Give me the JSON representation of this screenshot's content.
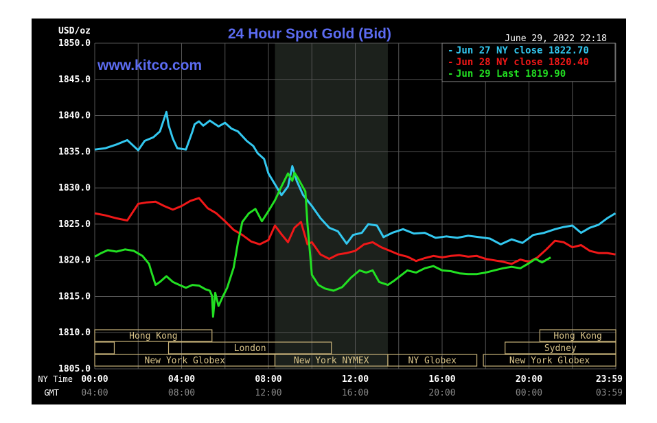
{
  "chart_data": {
    "type": "line",
    "title": "24 Hour Spot Gold (Bid)",
    "source_label": "www.kitco.com",
    "timestamp": "June 29, 2022 22:18",
    "ylabel": "USD/oz",
    "ylim": [
      1805,
      1850
    ],
    "y_ticks": [
      "1850.0",
      "1845.0",
      "1840.0",
      "1835.0",
      "1830.0",
      "1825.0",
      "1820.0",
      "1815.0",
      "1810.0",
      "1805.0"
    ],
    "x_row_label_ny": "NY Time",
    "x_row_label_gmt": "GMT",
    "x_ticks_ny": [
      "00:00",
      "04:00",
      "08:00",
      "12:00",
      "16:00",
      "20:00",
      "23:59"
    ],
    "x_ticks_gmt": [
      "04:00",
      "08:00",
      "12:00",
      "16:00",
      "20:00",
      "00:00",
      "03:59"
    ],
    "x_tick_hours": [
      0,
      4,
      8,
      12,
      16,
      20,
      23.98
    ],
    "xlim": [
      0,
      24
    ],
    "grid": true,
    "legend_position": "top-right",
    "nymex_session_hours": [
      8.3,
      13.5
    ],
    "sessions": [
      {
        "label": "Hong Kong",
        "start": 0,
        "end": 5.4,
        "row": 0
      },
      {
        "label": "Hong Kong",
        "start": 20.5,
        "end": 24,
        "row": 0
      },
      {
        "label": "",
        "start": 0,
        "end": 0.9,
        "row": 1
      },
      {
        "label": "London",
        "start": 3.4,
        "end": 10.9,
        "row": 1
      },
      {
        "label": "Sydney",
        "start": 18.9,
        "end": 24,
        "row": 1
      },
      {
        "label": "New York Globex",
        "start": 0,
        "end": 8.3,
        "row": 2
      },
      {
        "label": "New York NYMEX",
        "start": 8.3,
        "end": 13.5,
        "row": 2
      },
      {
        "label": "NY Globex",
        "start": 13.5,
        "end": 17.6,
        "row": 2
      },
      {
        "label": "New York Globex",
        "start": 17.9,
        "end": 24,
        "row": 2
      }
    ],
    "series": [
      {
        "name": "Jun 27 NY close 1822.70",
        "color": "#33c8f0",
        "x": [
          0,
          0.5,
          1,
          1.5,
          2,
          2.3,
          2.7,
          3,
          3.3,
          3.4,
          3.6,
          3.8,
          4.2,
          4.5,
          4.6,
          4.8,
          5,
          5.3,
          5.7,
          6,
          6.3,
          6.6,
          7,
          7.3,
          7.5,
          7.8,
          8,
          8.3,
          8.6,
          8.9,
          9.1,
          9.3,
          9.6,
          10,
          10.4,
          10.8,
          11.2,
          11.6,
          11.9,
          12.3,
          12.6,
          13,
          13.3,
          13.7,
          14.2,
          14.7,
          15.2,
          15.7,
          16.2,
          16.7,
          17.2,
          17.7,
          18.2,
          18.7,
          19.2,
          19.7,
          20.2,
          20.7,
          21.2,
          21.6,
          22,
          22.4,
          22.8,
          23.2,
          23.6,
          23.98
        ],
        "y": [
          1835.3,
          1835.5,
          1836,
          1836.6,
          1835.2,
          1836.5,
          1837,
          1837.8,
          1840.5,
          1838.7,
          1836.8,
          1835.5,
          1835.3,
          1837.8,
          1838.8,
          1839.2,
          1838.6,
          1839.3,
          1838.5,
          1839,
          1838.2,
          1837.8,
          1836.5,
          1835.8,
          1834.8,
          1834,
          1832,
          1830.5,
          1829,
          1830.2,
          1833,
          1831,
          1829,
          1827.5,
          1825.8,
          1824.5,
          1824,
          1822.3,
          1823.5,
          1823.8,
          1825,
          1824.8,
          1823.2,
          1823.8,
          1824.3,
          1823.7,
          1823.8,
          1823.1,
          1823.3,
          1823.1,
          1823.4,
          1823.2,
          1823,
          1822.2,
          1822.9,
          1822.4,
          1823.5,
          1823.8,
          1824.3,
          1824.6,
          1824.8,
          1823.8,
          1824.5,
          1824.9,
          1825.8,
          1826.5
        ]
      },
      {
        "name": "Jun 28 NY close 1820.40",
        "color": "#f01818",
        "x": [
          0,
          0.5,
          1,
          1.5,
          2,
          2.4,
          2.8,
          3.2,
          3.6,
          4,
          4.4,
          4.8,
          5.2,
          5.6,
          6,
          6.4,
          6.8,
          7.2,
          7.6,
          8,
          8.3,
          8.6,
          8.9,
          9.2,
          9.5,
          9.8,
          10,
          10.4,
          10.8,
          11.2,
          11.6,
          12,
          12.4,
          12.8,
          13.2,
          13.6,
          14,
          14.4,
          14.8,
          15.2,
          15.6,
          16,
          16.4,
          16.8,
          17.2,
          17.6,
          18,
          18.4,
          18.8,
          19.2,
          19.6,
          20,
          20.4,
          20.8,
          21.2,
          21.6,
          22,
          22.4,
          22.8,
          23.2,
          23.6,
          23.98
        ],
        "y": [
          1826.5,
          1826.2,
          1825.8,
          1825.5,
          1827.8,
          1828,
          1828.1,
          1827.5,
          1827,
          1827.5,
          1828.2,
          1828.6,
          1827.2,
          1826.5,
          1825.4,
          1824.2,
          1823.5,
          1822.6,
          1822.2,
          1822.8,
          1824.8,
          1823.6,
          1822.5,
          1824.5,
          1825.3,
          1822.2,
          1822.5,
          1820.8,
          1820.2,
          1820.8,
          1821,
          1821.3,
          1822.2,
          1822.5,
          1821.8,
          1821.3,
          1820.8,
          1820.5,
          1819.9,
          1820.3,
          1820.6,
          1820.4,
          1820.6,
          1820.7,
          1820.5,
          1820.6,
          1820.2,
          1820,
          1819.8,
          1819.5,
          1820.1,
          1819.8,
          1820.4,
          1821.5,
          1822.7,
          1822.5,
          1821.8,
          1822.1,
          1821.3,
          1821,
          1821,
          1820.8
        ]
      },
      {
        "name": "Jun 29 Last 1819.90",
        "color": "#22e022",
        "x": [
          0,
          0.3,
          0.6,
          1,
          1.4,
          1.8,
          2.2,
          2.5,
          2.6,
          2.8,
          3,
          3.3,
          3.6,
          3.9,
          4.2,
          4.5,
          4.8,
          5.1,
          5.3,
          5.4,
          5.45,
          5.55,
          5.7,
          5.9,
          6.1,
          6.4,
          6.6,
          6.8,
          7.1,
          7.4,
          7.7,
          8,
          8.3,
          8.6,
          8.9,
          9.1,
          9.2,
          9.35,
          9.5,
          9.7,
          9.8,
          10,
          10.3,
          10.6,
          11,
          11.4,
          11.8,
          12.2,
          12.5,
          12.8,
          13.1,
          13.5,
          13.8,
          14.1,
          14.4,
          14.8,
          15.2,
          15.6,
          16,
          16.4,
          16.8,
          17.2,
          17.6,
          18,
          18.4,
          18.8,
          19.2,
          19.6,
          20,
          20.3,
          20.6,
          21
        ],
        "y": [
          1820.5,
          1821,
          1821.4,
          1821.2,
          1821.5,
          1821.3,
          1820.6,
          1819.5,
          1818.5,
          1816.6,
          1817,
          1817.8,
          1817,
          1816.6,
          1816.2,
          1816.6,
          1816.5,
          1816,
          1815.8,
          1815.1,
          1812.2,
          1815.5,
          1813.7,
          1815,
          1816.2,
          1819,
          1822.5,
          1825.3,
          1826.5,
          1827.1,
          1825.4,
          1826.8,
          1828.3,
          1830.2,
          1832,
          1831,
          1832.1,
          1831.4,
          1830.6,
          1829.5,
          1825,
          1818,
          1816.6,
          1816.1,
          1815.8,
          1816.3,
          1817.6,
          1818.6,
          1818.3,
          1818.6,
          1817,
          1816.6,
          1817.2,
          1817.9,
          1818.6,
          1818.3,
          1818.9,
          1819.2,
          1818.6,
          1818.5,
          1818.2,
          1818.1,
          1818.1,
          1818.3,
          1818.6,
          1818.9,
          1819.1,
          1818.9,
          1819.6,
          1820.2,
          1819.7,
          1820.4
        ]
      }
    ]
  }
}
